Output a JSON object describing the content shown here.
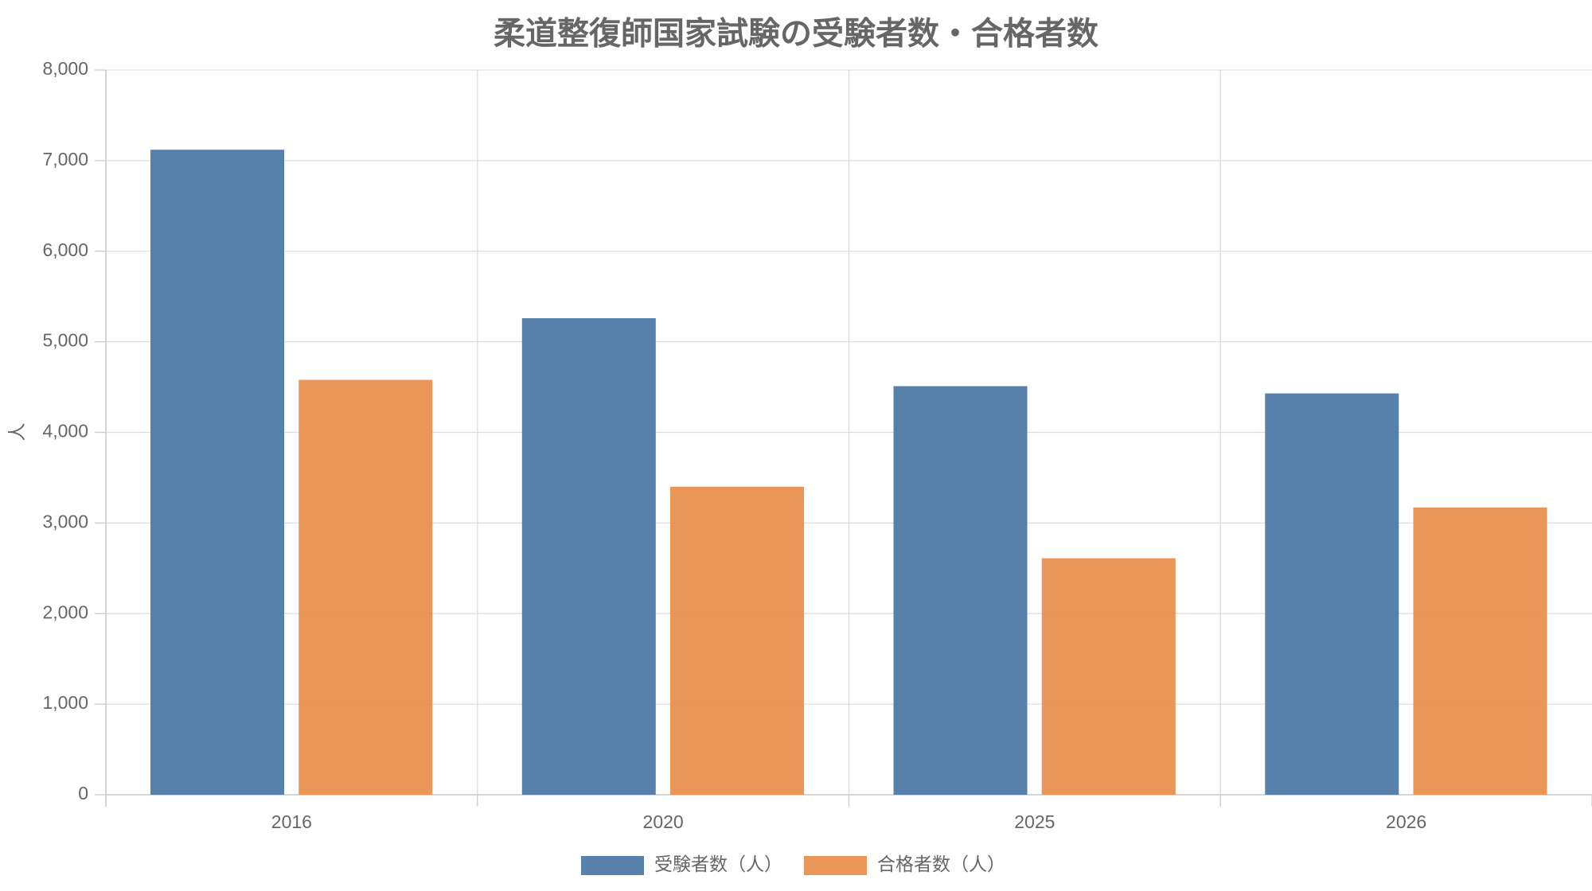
{
  "chart_data": {
    "type": "bar",
    "title": "柔道整復師国家試験の受験者数・合格者数",
    "y_label": "人",
    "categories": [
      "2016",
      "2020",
      "2025",
      "2026"
    ],
    "series": [
      {
        "name": "受験者数（人）",
        "color": "#4e79a7",
        "values": [
          7120,
          5260,
          4510,
          4430
        ]
      },
      {
        "name": "合格者数（人）",
        "color": "#e8904f",
        "values": [
          4580,
          3400,
          2610,
          3170
        ]
      }
    ],
    "ylim": [
      0,
      8000
    ],
    "yticks": [
      0,
      {
        "value": 1000,
        "label": "1,000"
      },
      {
        "value": 2000,
        "label": "2,000"
      },
      {
        "value": 3000,
        "label": "3,000"
      },
      {
        "value": 4000,
        "label": "4,000"
      },
      {
        "value": 5000,
        "label": "5,000"
      },
      {
        "value": 6000,
        "label": "6,000"
      },
      {
        "value": 7000,
        "label": "7,000"
      },
      {
        "value": 8000,
        "label": "8,000"
      }
    ],
    "grid": true,
    "legend": "bottom"
  }
}
